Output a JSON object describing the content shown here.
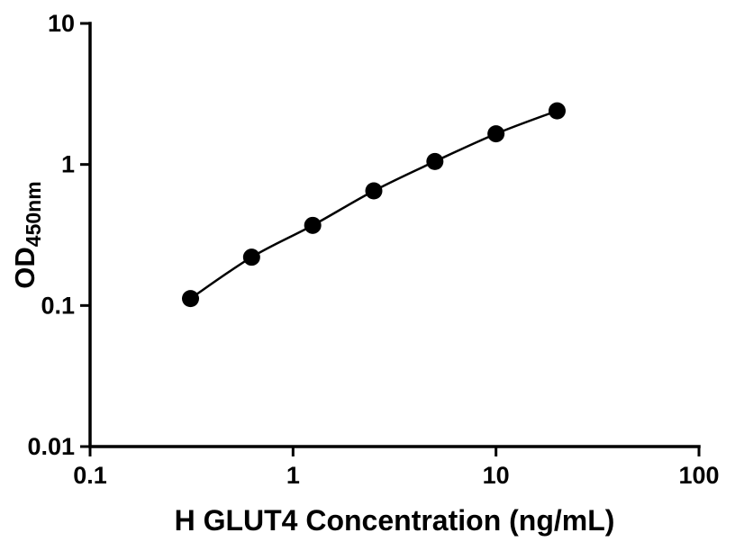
{
  "chart_data": {
    "type": "scatter",
    "title": "",
    "xlabel": "H GLUT4 Concentration (ng/mL)",
    "ylabel_main": "OD",
    "ylabel_sub": "450nm",
    "x_scale": "log",
    "y_scale": "log",
    "xlim": [
      0.1,
      100
    ],
    "ylim": [
      0.01,
      10
    ],
    "grid": false,
    "legend": "none",
    "x_ticks": [
      {
        "value": 0.1,
        "label": "0.1"
      },
      {
        "value": 1,
        "label": "1"
      },
      {
        "value": 10,
        "label": "10"
      },
      {
        "value": 100,
        "label": "100"
      }
    ],
    "y_ticks": [
      {
        "value": 0.01,
        "label": "0.01"
      },
      {
        "value": 0.1,
        "label": "0.1"
      },
      {
        "value": 1,
        "label": "1"
      },
      {
        "value": 10,
        "label": "10"
      }
    ],
    "points": [
      {
        "x": 0.3125,
        "y": 0.112
      },
      {
        "x": 0.625,
        "y": 0.22
      },
      {
        "x": 1.25,
        "y": 0.37
      },
      {
        "x": 2.5,
        "y": 0.65
      },
      {
        "x": 5,
        "y": 1.05
      },
      {
        "x": 10,
        "y": 1.65
      },
      {
        "x": 20,
        "y": 2.4
      }
    ],
    "colors": {
      "axis": "#000000",
      "line": "#000000",
      "marker": "#000000",
      "background": "#ffffff"
    }
  }
}
